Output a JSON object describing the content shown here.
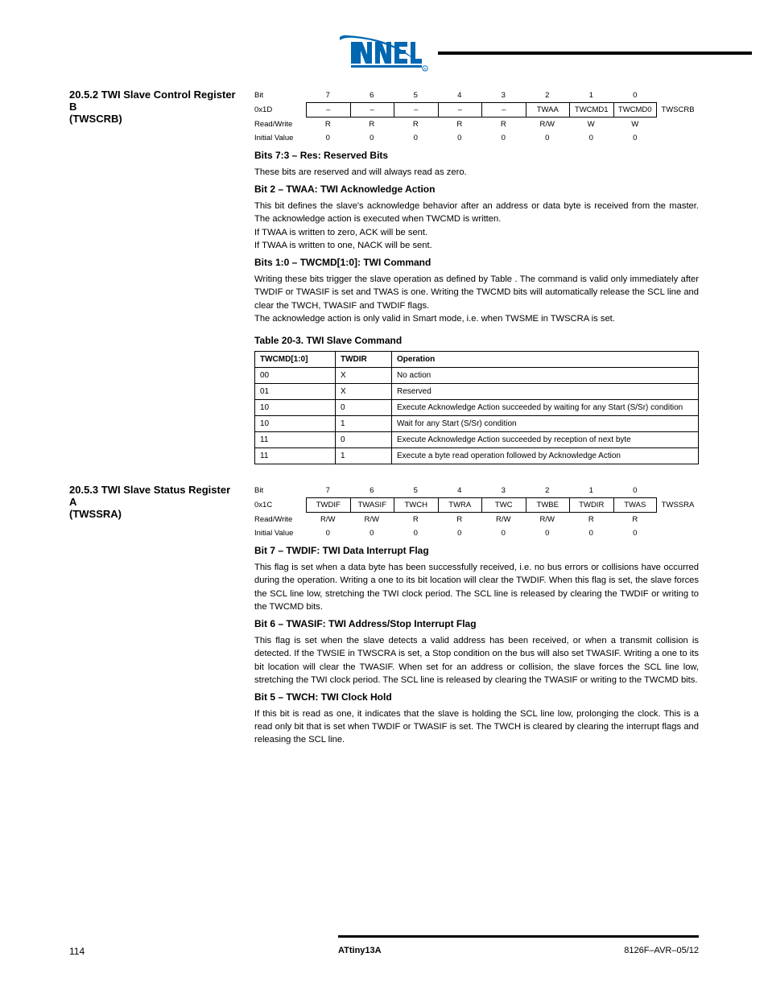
{
  "header": {
    "logo_fill": "#0067b1"
  },
  "section1": {
    "left_label": "20.5.2   TWI Slave Control Register B\n(TWSCRB)",
    "bits_row": [
      "Bit",
      "7",
      "6",
      "5",
      "4",
      "3",
      "2",
      "1",
      "0",
      ""
    ],
    "names_row": [
      "0x1D",
      "–",
      "–",
      "–",
      "–",
      "–",
      "TWAA",
      "TWCMD1",
      "TWCMD0",
      "TWSCRB"
    ],
    "rw_row": [
      "Read/Write",
      "R",
      "R",
      "R",
      "R",
      "R",
      "R/W",
      "W",
      "W",
      ""
    ],
    "iv_row": [
      "Initial Value",
      "0",
      "0",
      "0",
      "0",
      "0",
      "0",
      "0",
      "0",
      ""
    ],
    "bullets": [
      {
        "title": "Bits 7:3 – Res: Reserved Bits",
        "text": "These bits are reserved and will always read as zero."
      },
      {
        "title": "Bit 2 – TWAA: TWI Acknowledge Action",
        "text": "This bit defines the slave's acknowledge behavior after an address or data byte is received from the master. The acknowledge action is executed when TWCMD is written.\nIf TWAA is written to zero, ACK will be sent.\nIf TWAA is written to one, NACK will be sent."
      },
      {
        "title": "Bits 1:0 – TWCMD[1:0]: TWI Command",
        "text": "Writing these bits trigger the slave operation as defined by Table . The command is valid only immediately after TWDIF or TWASIF is set and TWAS is one. Writing the TWCMD bits will automatically release the SCL line and clear the TWCH, TWASIF and TWDIF flags.\nThe acknowledge action is only valid in Smart mode, i.e. when TWSME in TWSCRA is set."
      }
    ]
  },
  "table20_3": {
    "caption": "Table 20-3.    TWI Slave Command",
    "headers": [
      "TWCMD[1:0]",
      "TWDIR",
      "Operation"
    ],
    "rows": [
      [
        "00",
        "X",
        "No action"
      ],
      [
        "01",
        "X",
        "Reserved"
      ],
      [
        "10",
        "0",
        "Execute Acknowledge Action succeeded by waiting for any Start (S/Sr) condition"
      ],
      [
        "10",
        "1",
        "Wait for any Start (S/Sr) condition"
      ],
      [
        "11",
        "0",
        "Execute Acknowledge Action succeeded by reception of next byte"
      ],
      [
        "11",
        "1",
        "Execute a byte read operation followed by Acknowledge Action"
      ]
    ],
    "col_widths": [
      "100px",
      "70px",
      "1fr"
    ]
  },
  "section2": {
    "left_label": "20.5.3   TWI Slave Status Register A\n(TWSSRA)",
    "bits_row": [
      "Bit",
      "7",
      "6",
      "5",
      "4",
      "3",
      "2",
      "1",
      "0",
      ""
    ],
    "names_row": [
      "0x1C",
      "TWDIF",
      "TWASIF",
      "TWCH",
      "TWRA",
      "TWC",
      "TWBE",
      "TWDIR",
      "TWAS",
      "TWSSRA"
    ],
    "rw_row": [
      "Read/Write",
      "R/W",
      "R/W",
      "R",
      "R",
      "R/W",
      "R/W",
      "R",
      "R",
      ""
    ],
    "iv_row": [
      "Initial Value",
      "0",
      "0",
      "0",
      "0",
      "0",
      "0",
      "0",
      "0",
      ""
    ],
    "bullets": [
      {
        "title": "Bit 7 – TWDIF: TWI Data Interrupt Flag",
        "text": "This flag is set when a data byte has been successfully received, i.e. no bus errors or collisions have occurred during the operation. Writing a one to its bit location will clear the TWDIF. When this flag is set, the slave forces the SCL line low, stretching the TWI clock period. The SCL line is released by clearing the TWDIF or writing to the TWCMD bits."
      },
      {
        "title": "Bit 6 – TWASIF: TWI Address/Stop Interrupt Flag",
        "text": "This flag is set when the slave detects a valid address has been received, or when a transmit collision is detected. If the TWSIE in TWSCRA is set, a Stop condition on the bus will also set TWASIF. Writing a one to its bit location will clear the TWASIF. When set for an address or collision, the slave forces the SCL line low, stretching the TWI clock period. The SCL line is released by clearing the TWASIF or writing to the TWCMD bits."
      },
      {
        "title": "Bit 5 – TWCH: TWI Clock Hold",
        "text": "If this bit is read as one, it indicates that the slave is holding the SCL line low, prolonging the clock. This is a read only bit that is set when TWDIF or TWASIF is set. The TWCH is cleared by clearing the interrupt flags and releasing the SCL line."
      }
    ]
  },
  "footer": {
    "doc": "8126F–AVR–05/12",
    "model": "ATtiny13A",
    "page": "114"
  }
}
